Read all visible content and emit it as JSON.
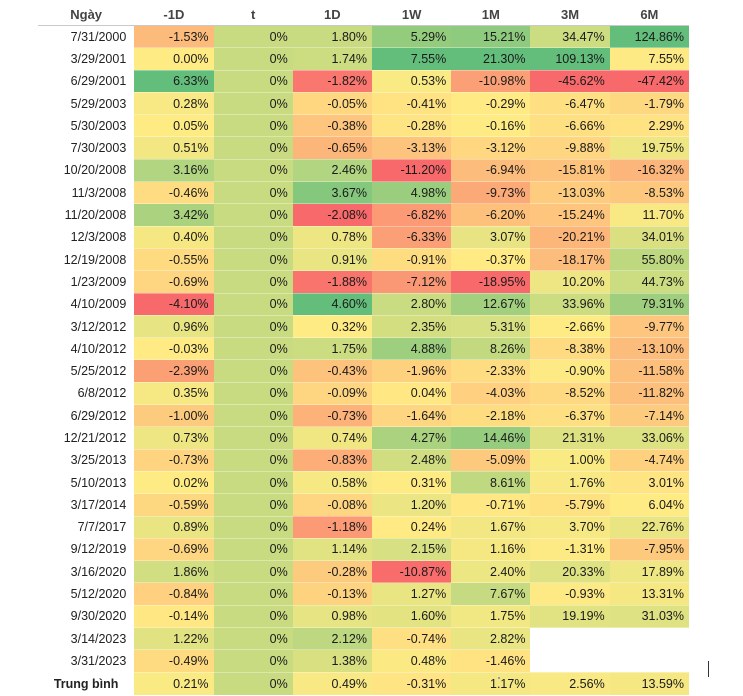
{
  "chart_data": {
    "type": "table",
    "title": "",
    "columns": [
      "Ngày",
      "-1D",
      "t",
      "1D",
      "1W",
      "1M",
      "3M",
      "6M"
    ],
    "rows": [
      {
        "date": "7/31/2000",
        "values": [
          "-1.53%",
          "0%",
          "1.80%",
          "5.29%",
          "15.21%",
          "34.47%",
          "124.86%"
        ]
      },
      {
        "date": "3/29/2001",
        "values": [
          "0.00%",
          "0%",
          "1.74%",
          "7.55%",
          "21.30%",
          "109.13%",
          "7.55%"
        ]
      },
      {
        "date": "6/29/2001",
        "values": [
          "6.33%",
          "0%",
          "-1.82%",
          "0.53%",
          "-10.98%",
          "-45.62%",
          "-47.42%"
        ]
      },
      {
        "date": "5/29/2003",
        "values": [
          "0.28%",
          "0%",
          "-0.05%",
          "-0.41%",
          "-0.29%",
          "-6.47%",
          "-1.79%"
        ]
      },
      {
        "date": "5/30/2003",
        "values": [
          "0.05%",
          "0%",
          "-0.38%",
          "-0.28%",
          "-0.16%",
          "-6.66%",
          "2.29%"
        ]
      },
      {
        "date": "7/30/2003",
        "values": [
          "0.51%",
          "0%",
          "-0.65%",
          "-3.13%",
          "-3.12%",
          "-9.88%",
          "19.75%"
        ]
      },
      {
        "date": "10/20/2008",
        "values": [
          "3.16%",
          "0%",
          "2.46%",
          "-11.20%",
          "-6.94%",
          "-15.81%",
          "-16.32%"
        ]
      },
      {
        "date": "11/3/2008",
        "values": [
          "-0.46%",
          "0%",
          "3.67%",
          "4.98%",
          "-9.73%",
          "-13.03%",
          "-8.53%"
        ]
      },
      {
        "date": "11/20/2008",
        "values": [
          "3.42%",
          "0%",
          "-2.08%",
          "-6.82%",
          "-6.20%",
          "-15.24%",
          "11.70%"
        ]
      },
      {
        "date": "12/3/2008",
        "values": [
          "0.40%",
          "0%",
          "0.78%",
          "-6.33%",
          "3.07%",
          "-20.21%",
          "34.01%"
        ]
      },
      {
        "date": "12/19/2008",
        "values": [
          "-0.55%",
          "0%",
          "0.91%",
          "-0.91%",
          "-0.37%",
          "-18.17%",
          "55.80%"
        ]
      },
      {
        "date": "1/23/2009",
        "values": [
          "-0.69%",
          "0%",
          "-1.88%",
          "-7.12%",
          "-18.95%",
          "10.20%",
          "44.73%"
        ]
      },
      {
        "date": "4/10/2009",
        "values": [
          "-4.10%",
          "0%",
          "4.60%",
          "2.80%",
          "12.67%",
          "33.96%",
          "79.31%"
        ]
      },
      {
        "date": "3/12/2012",
        "values": [
          "0.96%",
          "0%",
          "0.32%",
          "2.35%",
          "5.31%",
          "-2.66%",
          "-9.77%"
        ]
      },
      {
        "date": "4/10/2012",
        "values": [
          "-0.03%",
          "0%",
          "1.75%",
          "4.88%",
          "8.26%",
          "-8.38%",
          "-13.10%"
        ]
      },
      {
        "date": "5/25/2012",
        "values": [
          "-2.39%",
          "0%",
          "-0.43%",
          "-1.96%",
          "-2.33%",
          "-0.90%",
          "-11.58%"
        ]
      },
      {
        "date": "6/8/2012",
        "values": [
          "0.35%",
          "0%",
          "-0.09%",
          "0.04%",
          "-4.03%",
          "-8.52%",
          "-11.82%"
        ]
      },
      {
        "date": "6/29/2012",
        "values": [
          "-1.00%",
          "0%",
          "-0.73%",
          "-1.64%",
          "-2.18%",
          "-6.37%",
          "-7.14%"
        ]
      },
      {
        "date": "12/21/2012",
        "values": [
          "0.73%",
          "0%",
          "0.74%",
          "4.27%",
          "14.46%",
          "21.31%",
          "33.06%"
        ]
      },
      {
        "date": "3/25/2013",
        "values": [
          "-0.73%",
          "0%",
          "-0.83%",
          "2.48%",
          "-5.09%",
          "1.00%",
          "-4.74%"
        ]
      },
      {
        "date": "5/10/2013",
        "values": [
          "0.02%",
          "0%",
          "0.58%",
          "0.31%",
          "8.61%",
          "1.76%",
          "3.01%"
        ]
      },
      {
        "date": "3/17/2014",
        "values": [
          "-0.59%",
          "0%",
          "-0.08%",
          "1.20%",
          "-0.71%",
          "-5.79%",
          "6.04%"
        ]
      },
      {
        "date": "7/7/2017",
        "values": [
          "0.89%",
          "0%",
          "-1.18%",
          "0.24%",
          "1.67%",
          "3.70%",
          "22.76%"
        ]
      },
      {
        "date": "9/12/2019",
        "values": [
          "-0.69%",
          "0%",
          "1.14%",
          "2.15%",
          "1.16%",
          "-1.31%",
          "-7.95%"
        ]
      },
      {
        "date": "3/16/2020",
        "values": [
          "1.86%",
          "0%",
          "-0.28%",
          "-10.87%",
          "2.40%",
          "20.33%",
          "17.89%"
        ]
      },
      {
        "date": "5/12/2020",
        "values": [
          "-0.84%",
          "0%",
          "-0.13%",
          "1.27%",
          "7.67%",
          "-0.93%",
          "13.31%"
        ]
      },
      {
        "date": "9/30/2020",
        "values": [
          "-0.14%",
          "0%",
          "0.98%",
          "1.60%",
          "1.75%",
          "19.19%",
          "31.03%"
        ]
      },
      {
        "date": "3/14/2023",
        "values": [
          "1.22%",
          "0%",
          "2.12%",
          "-0.74%",
          "2.82%",
          null,
          null
        ]
      },
      {
        "date": "3/31/2023",
        "values": [
          "-0.49%",
          "0%",
          "1.38%",
          "0.48%",
          "-1.46%",
          null,
          null
        ]
      }
    ],
    "average": {
      "label": "Trung bình",
      "values": [
        "0.21%",
        "0%",
        "0.49%",
        "-0.31%",
        "1.17%",
        "2.56%",
        "13.59%"
      ]
    },
    "colors": {
      "negative": "#f8696b",
      "neutral": "#ffeb84",
      "positive": "#63be7b"
    }
  }
}
